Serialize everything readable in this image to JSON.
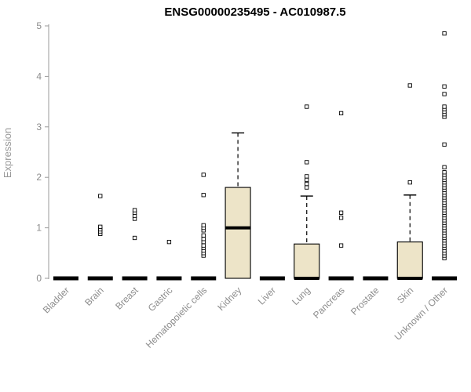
{
  "chart_data": {
    "type": "boxplot",
    "title": "ENSG00000235495 - AC010987.5",
    "ylabel": "Expression",
    "ylim": [
      0,
      5
    ],
    "yticks": [
      0,
      1,
      2,
      3,
      4,
      5
    ],
    "grid": false,
    "legend": "none",
    "box_fill": "#ede4c8",
    "axis_color": "#999999",
    "tick_label_color": "#8c8c8c",
    "categories": [
      "Bladder",
      "Brain",
      "Breast",
      "Gastric",
      "Hematopoietic cells",
      "Kidney",
      "Liver",
      "Lung",
      "Pancreas",
      "Prostate",
      "Skin",
      "Unknown / Other"
    ],
    "boxes": [
      {
        "category": "Bladder",
        "q1": 0,
        "median": 0,
        "q3": 0,
        "whisker_low": 0,
        "whisker_high": 0,
        "outliers": []
      },
      {
        "category": "Brain",
        "q1": 0,
        "median": 0,
        "q3": 0,
        "whisker_low": 0,
        "whisker_high": 0,
        "outliers": [
          0.88,
          0.93,
          0.97,
          1.02,
          1.63
        ]
      },
      {
        "category": "Breast",
        "q1": 0,
        "median": 0,
        "q3": 0,
        "whisker_low": 0,
        "whisker_high": 0,
        "outliers": [
          0.8,
          1.18,
          1.24,
          1.3,
          1.35
        ]
      },
      {
        "category": "Gastric",
        "q1": 0,
        "median": 0,
        "q3": 0,
        "whisker_low": 0,
        "whisker_high": 0,
        "outliers": [
          0.72
        ]
      },
      {
        "category": "Hematopoietic cells",
        "q1": 0,
        "median": 0,
        "q3": 0,
        "whisker_low": 0,
        "whisker_high": 0,
        "outliers": [
          0.45,
          0.5,
          0.55,
          0.6,
          0.65,
          0.72,
          0.78,
          0.85,
          0.95,
          1.0,
          1.05,
          1.65,
          2.05
        ]
      },
      {
        "category": "Kidney",
        "q1": 0,
        "median": 1.0,
        "q3": 1.8,
        "whisker_low": 0,
        "whisker_high": 2.88,
        "outliers": []
      },
      {
        "category": "Liver",
        "q1": 0,
        "median": 0,
        "q3": 0,
        "whisker_low": 0,
        "whisker_high": 0,
        "outliers": []
      },
      {
        "category": "Lung",
        "q1": 0,
        "median": 0,
        "q3": 0.68,
        "whisker_low": 0,
        "whisker_high": 1.63,
        "outliers": [
          1.8,
          1.87,
          1.95,
          2.02,
          2.3,
          3.4
        ]
      },
      {
        "category": "Pancreas",
        "q1": 0,
        "median": 0,
        "q3": 0,
        "whisker_low": 0,
        "whisker_high": 0,
        "outliers": [
          0.65,
          1.2,
          1.3,
          3.27
        ]
      },
      {
        "category": "Prostate",
        "q1": 0,
        "median": 0,
        "q3": 0,
        "whisker_low": 0,
        "whisker_high": 0,
        "outliers": []
      },
      {
        "category": "Skin",
        "q1": 0,
        "median": 0,
        "q3": 0.72,
        "whisker_low": 0,
        "whisker_high": 1.65,
        "outliers": [
          1.9,
          3.82
        ]
      },
      {
        "category": "Unknown / Other",
        "q1": 0,
        "median": 0,
        "q3": 0,
        "whisker_low": 0,
        "whisker_high": 0,
        "outliers": [
          0.4,
          0.45,
          0.5,
          0.55,
          0.6,
          0.65,
          0.7,
          0.75,
          0.8,
          0.85,
          0.9,
          0.95,
          1.0,
          1.05,
          1.1,
          1.15,
          1.2,
          1.25,
          1.3,
          1.35,
          1.4,
          1.45,
          1.5,
          1.55,
          1.6,
          1.65,
          1.7,
          1.75,
          1.8,
          1.85,
          1.9,
          1.95,
          2.0,
          2.05,
          2.1,
          2.2,
          2.65,
          3.2,
          3.25,
          3.3,
          3.35,
          3.4,
          3.65,
          3.8,
          4.85
        ]
      }
    ]
  }
}
